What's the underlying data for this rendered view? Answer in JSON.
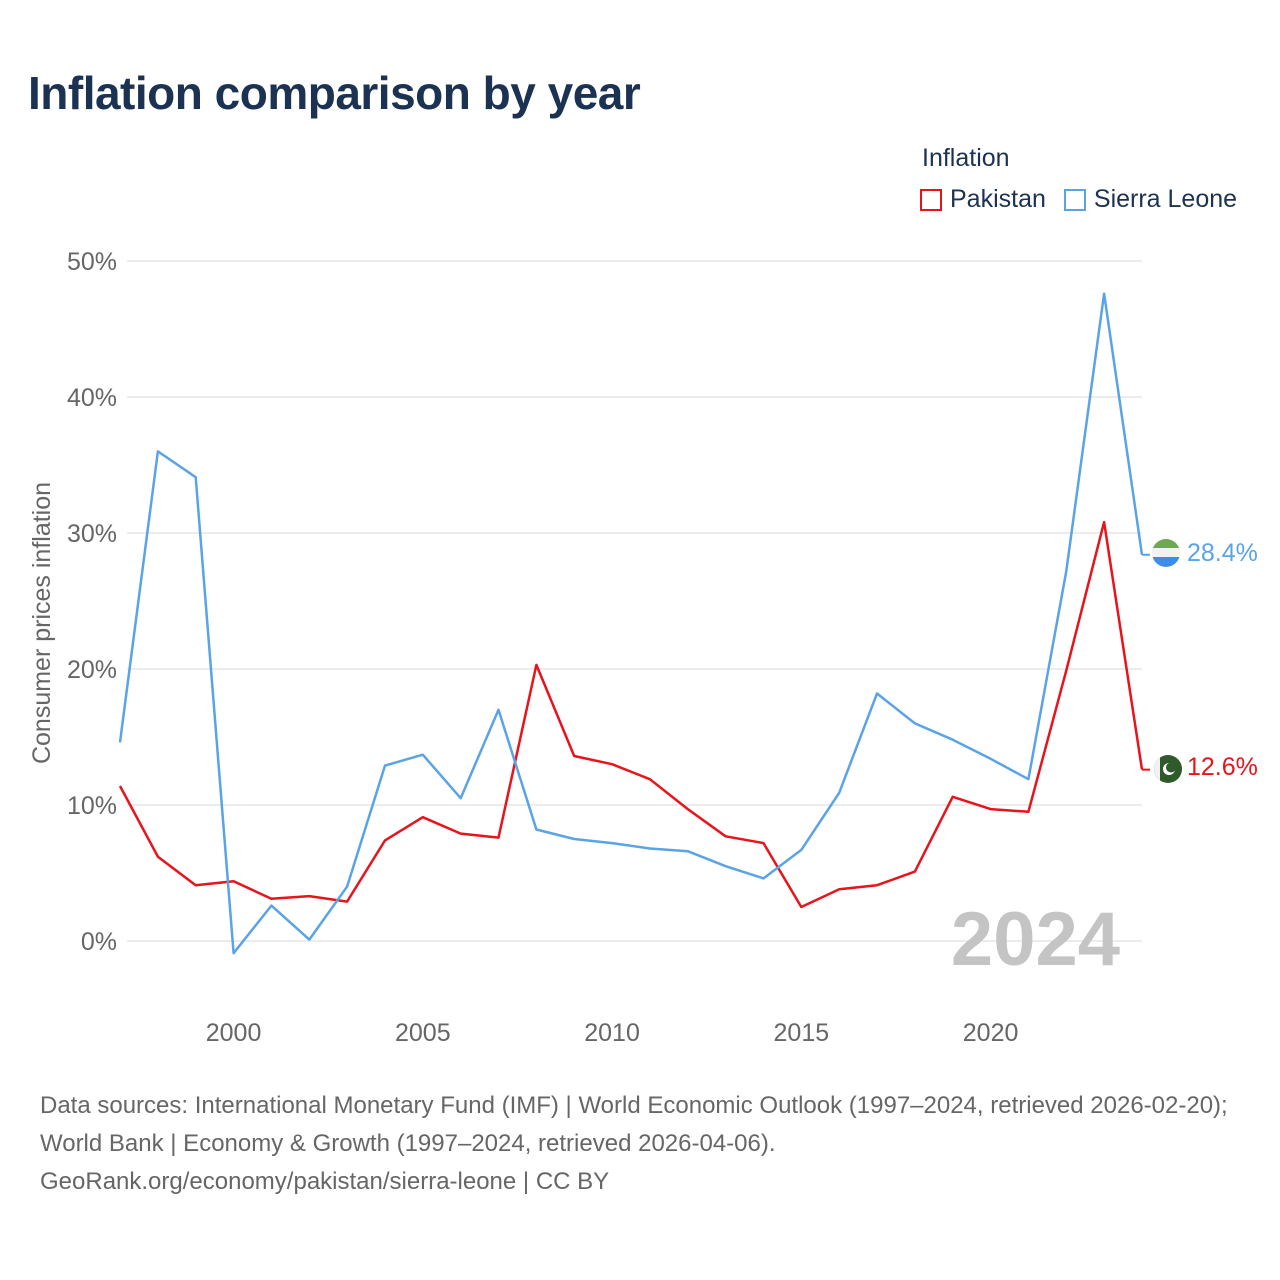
{
  "title": "Inflation comparison by year",
  "legend": {
    "title": "Inflation",
    "items": [
      {
        "label": "Pakistan",
        "color": "#e8131b"
      },
      {
        "label": "Sierra Leone",
        "color": "#5aa3e6"
      }
    ]
  },
  "footer": {
    "sources": "Data sources: International Monetary Fund (IMF) | World Economic Outlook (1997–2024, retrieved 2026-02-20); World Bank | Economy & Growth (1997–2024, retrieved 2026-04-06).",
    "credit": "GeoRank.org/economy/pakistan/sierra-leone | CC BY"
  },
  "chart_data": {
    "type": "line",
    "title": "Inflation comparison by year",
    "xlabel": "",
    "ylabel": "Consumer prices inflation",
    "x": [
      1997,
      1998,
      1999,
      2000,
      2001,
      2002,
      2003,
      2004,
      2005,
      2006,
      2007,
      2008,
      2009,
      2010,
      2011,
      2012,
      2013,
      2014,
      2015,
      2016,
      2017,
      2018,
      2019,
      2020,
      2021,
      2022,
      2023,
      2024
    ],
    "xlim": [
      1997,
      2024
    ],
    "ylim": [
      -5,
      52
    ],
    "xticks": [
      2000,
      2005,
      2010,
      2015,
      2020
    ],
    "yticks": [
      0,
      10,
      20,
      30,
      40,
      50
    ],
    "ytick_labels": [
      "0%",
      "10%",
      "20%",
      "30%",
      "40%",
      "50%"
    ],
    "grid": true,
    "year_watermark": "2024",
    "series": [
      {
        "name": "Pakistan",
        "color": "#e8131b",
        "end_label": "12.6%",
        "values": [
          11.4,
          6.2,
          4.1,
          4.4,
          3.1,
          3.3,
          2.9,
          7.4,
          9.1,
          7.9,
          7.6,
          20.3,
          13.6,
          13.0,
          11.9,
          9.7,
          7.7,
          7.2,
          2.5,
          3.8,
          4.1,
          5.1,
          10.6,
          9.7,
          9.5,
          19.9,
          30.8,
          12.6
        ]
      },
      {
        "name": "Sierra Leone",
        "color": "#5aa3e6",
        "end_label": "28.4%",
        "values": [
          14.6,
          36.0,
          34.1,
          -0.9,
          2.6,
          0.1,
          4.0,
          12.9,
          13.7,
          10.5,
          17.0,
          8.2,
          7.5,
          7.2,
          6.8,
          6.6,
          5.5,
          4.6,
          6.7,
          10.9,
          18.2,
          16.0,
          14.8,
          13.4,
          11.9,
          27.2,
          47.6,
          28.4
        ]
      }
    ]
  }
}
